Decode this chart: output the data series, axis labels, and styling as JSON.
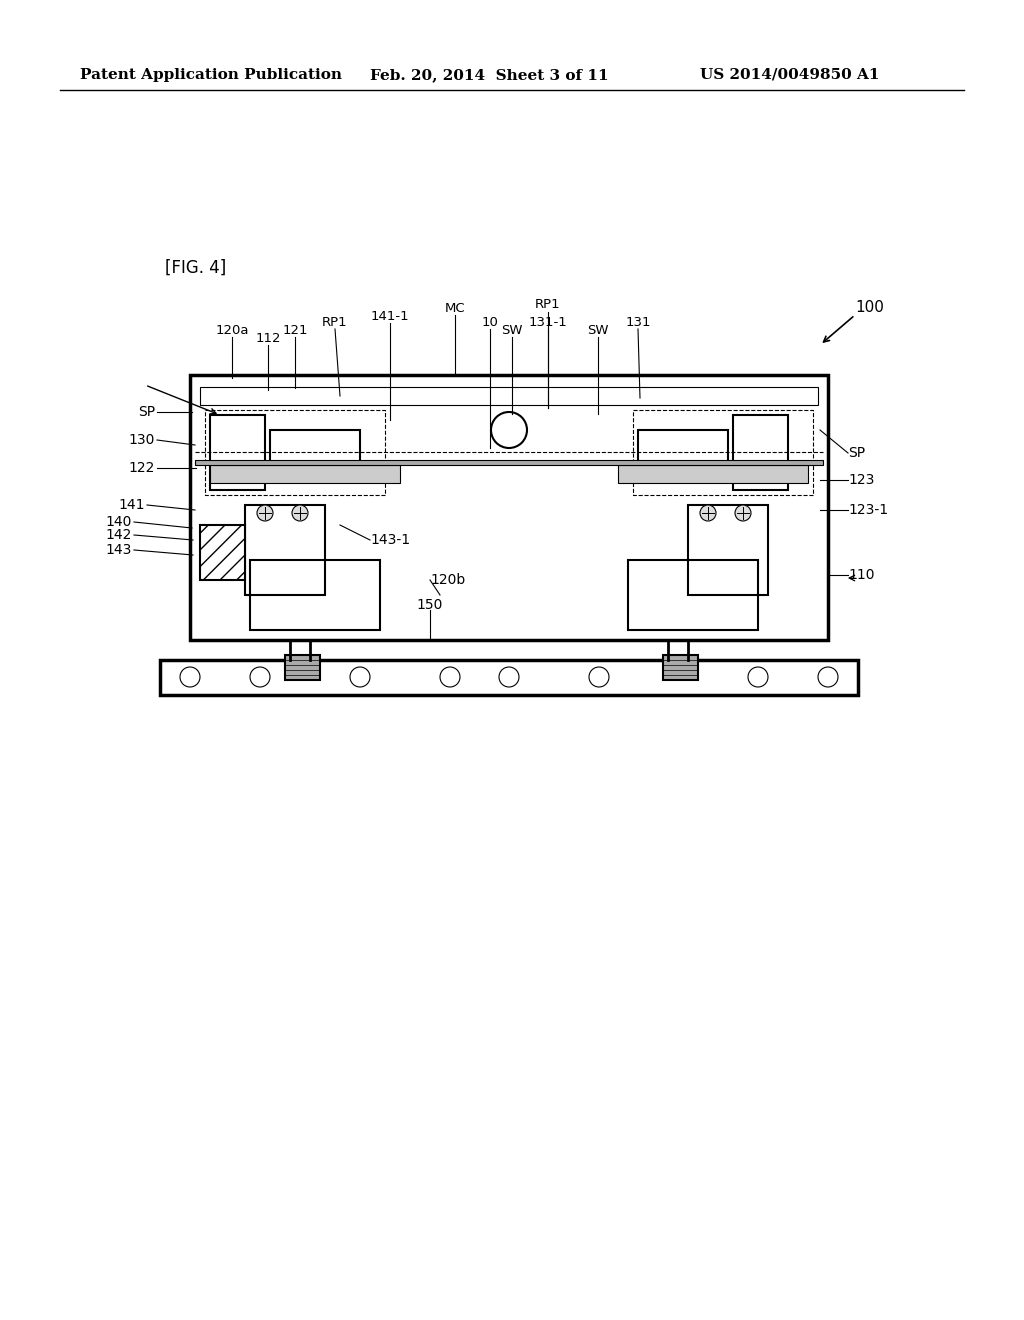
{
  "background_color": "#ffffff",
  "header_left": "Patent Application Publication",
  "header_center": "Feb. 20, 2014  Sheet 3 of 11",
  "header_right": "US 2014/0049850 A1",
  "fig_label": "[FIG. 4]",
  "title_ref": "100"
}
